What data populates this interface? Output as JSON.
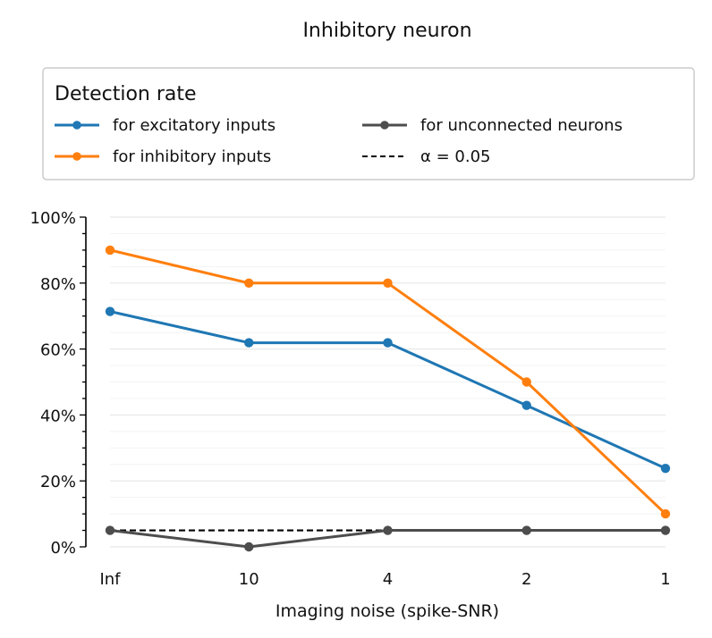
{
  "chart_data": {
    "type": "line",
    "title": "Inhibitory neuron",
    "xlabel": "Imaging noise (spike-SNR)",
    "ylabel": "",
    "categories": [
      "Inf",
      "10",
      "4",
      "2",
      "1"
    ],
    "ylim": [
      0,
      100
    ],
    "y_ticks": [
      "0%",
      "20%",
      "40%",
      "60%",
      "80%",
      "100%"
    ],
    "grid": "horizontal",
    "legend": {
      "title": "Detection rate",
      "placement": "top",
      "columns": 2
    },
    "series": [
      {
        "name": "for excitatory inputs",
        "color": "#1f77b4",
        "style": "solid-marker",
        "values": [
          71.4,
          61.9,
          61.9,
          42.9,
          23.8
        ]
      },
      {
        "name": "for inhibitory inputs",
        "color": "#ff7f0e",
        "style": "solid-marker",
        "values": [
          90,
          80,
          80,
          50,
          10
        ]
      },
      {
        "name": "for unconnected neurons",
        "color": "#4d4d4d",
        "style": "solid-marker",
        "values": [
          5,
          0,
          5,
          5,
          5
        ]
      },
      {
        "name": "α = 0.05",
        "color": "#000000",
        "style": "dashed",
        "values": [
          5,
          5,
          5,
          5,
          5
        ]
      }
    ]
  }
}
